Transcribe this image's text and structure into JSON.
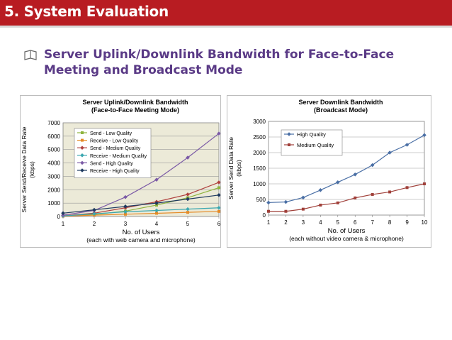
{
  "header": {
    "title": "5. System Evaluation",
    "accent": "#b81c22"
  },
  "bullet": {
    "icon": "book-bullet-icon",
    "text": "Server Uplink/Downlink Bandwidth for Face-to-Face Meeting and Broadcast Mode"
  },
  "chart_data": [
    {
      "type": "line",
      "title": "Server Uplink/Downlink Bandwidth",
      "subtitle": "(Face-to-Face Meeting Mode)",
      "xlabel": "No. of Users",
      "xlabel2": "(each with web camera and microphone)",
      "ylabel": "Server Send/Receive Data Rate",
      "ylabel2": "(kbps)",
      "x": [
        1,
        2,
        3,
        4,
        5,
        6
      ],
      "xlim": [
        1,
        6
      ],
      "ylim": [
        0,
        7000
      ],
      "yticks": [
        0,
        1000,
        2000,
        3000,
        4000,
        5000,
        6000,
        7000
      ],
      "grid": true,
      "plot_background": "#ecead8",
      "legend": "top-left",
      "series": [
        {
          "name": "Send - Low Quality",
          "color": "#8db33c",
          "marker": "square",
          "values": [
            30,
            150,
            400,
            850,
            1400,
            2150
          ]
        },
        {
          "name": "Receive - Low Quality",
          "color": "#e58b27",
          "marker": "square",
          "values": [
            20,
            100,
            170,
            240,
            310,
            380
          ]
        },
        {
          "name": "Send - Medium Quality",
          "color": "#b0413e",
          "marker": "diamond",
          "values": [
            50,
            250,
            650,
            1100,
            1650,
            2550
          ]
        },
        {
          "name": "Receive - Medium Quality",
          "color": "#3aa7b0",
          "marker": "diamond",
          "values": [
            40,
            200,
            350,
            450,
            550,
            650
          ]
        },
        {
          "name": "Send - High Quality",
          "color": "#7b5aa6",
          "marker": "diamond",
          "values": [
            100,
            450,
            1450,
            2750,
            4400,
            6200
          ]
        },
        {
          "name": "Receive - High Quality",
          "color": "#1f3a60",
          "marker": "diamond",
          "values": [
            250,
            500,
            750,
            1000,
            1300,
            1600
          ]
        }
      ]
    },
    {
      "type": "line",
      "title": "Server Downlink Bandwidth",
      "subtitle": "(Broadcast Mode)",
      "xlabel": "No. of Users",
      "xlabel2": "(each without video camera & microphone)",
      "ylabel": "Server Send Data Rate",
      "ylabel2": "(kbps)",
      "x": [
        1,
        2,
        3,
        4,
        5,
        6,
        7,
        8,
        9,
        10
      ],
      "xlim": [
        1,
        10
      ],
      "ylim": [
        0,
        3000
      ],
      "yticks": [
        0,
        500,
        1000,
        1500,
        2000,
        2500,
        3000
      ],
      "grid": true,
      "plot_background": "#ffffff",
      "legend": "top-left",
      "series": [
        {
          "name": "High Quality",
          "color": "#4a6fa5",
          "marker": "diamond",
          "values": [
            400,
            420,
            560,
            800,
            1050,
            1300,
            1600,
            2000,
            2250,
            2560
          ]
        },
        {
          "name": "Medium Quality",
          "color": "#a0403a",
          "marker": "square",
          "values": [
            120,
            120,
            190,
            320,
            390,
            550,
            660,
            740,
            880,
            1000
          ]
        }
      ]
    }
  ]
}
